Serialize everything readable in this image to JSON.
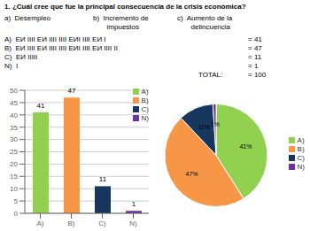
{
  "chart_data": [
    {
      "type": "bar",
      "title": "1.  ¿Cuál cree que fue la principal consecuencia de la crisis económica?",
      "subtitle": [
        "a)  Desempleo",
        "b)  Incremento de\n       impuestos",
        "c)  Aumento de la\n       delincuencia"
      ],
      "annotations": [
        [
          "A)  ЕИ IIII ЕИ IIII IIII ЕИI IIII ЕИ I",
          "= 41"
        ],
        [
          "B)  ЕИ IIII ЕИ IIII IIII ЕИI IIII ЕИ IIII II",
          "= 47"
        ],
        [
          "C)  ЕИ IIIII",
          "= 11"
        ],
        [
          "N)  I",
          "= 1"
        ],
        [
          "TOTAL:",
          "= 100"
        ]
      ],
      "categories": [
        "A)",
        "B)",
        "C)",
        "N)"
      ],
      "values": [
        41,
        47,
        11,
        1
      ],
      "colors": [
        "#92d050",
        "#f79646",
        "#17375e",
        "#7030a0"
      ],
      "ylim": [
        0,
        50
      ],
      "yticks": [
        0,
        5,
        10,
        15,
        20,
        25,
        30,
        35,
        40,
        45,
        50
      ],
      "grid": true,
      "data_labels": true,
      "legend": "upper right"
    },
    {
      "type": "pie",
      "categories": [
        "A)",
        "B)",
        "C)",
        "N)"
      ],
      "values": [
        41,
        47,
        11,
        1
      ],
      "value_labels": [
        "41%",
        "47%",
        "11%",
        "1%"
      ],
      "colors": [
        "#92d050",
        "#f79646",
        "#17375e",
        "#7030a0"
      ],
      "data_labels": true,
      "legend": "right"
    }
  ]
}
